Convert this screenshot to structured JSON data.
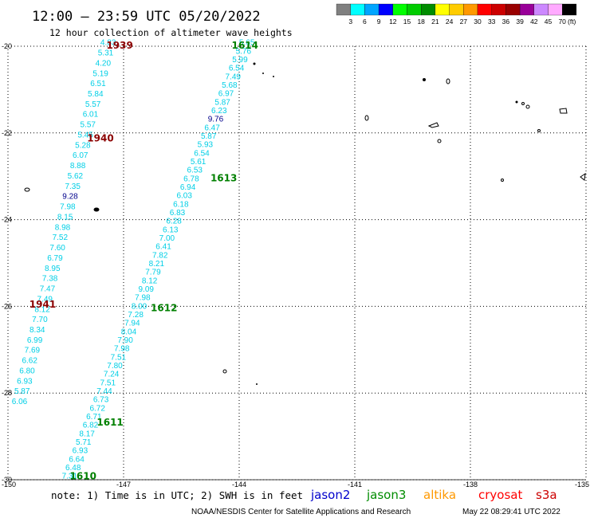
{
  "header": {
    "title": "12:00 – 23:59 UTC 05/20/2022",
    "subtitle": "12 hour collection of altimeter wave heights"
  },
  "legend": {
    "unit_label": "(ft)",
    "bins": [
      {
        "color": "#808080",
        "label": "3"
      },
      {
        "color": "#00ffff",
        "label": "6"
      },
      {
        "color": "#00a5ff",
        "label": "9"
      },
      {
        "color": "#0000ff",
        "label": "12"
      },
      {
        "color": "#00ff00",
        "label": "15"
      },
      {
        "color": "#00cc00",
        "label": "18"
      },
      {
        "color": "#008c00",
        "label": "21"
      },
      {
        "color": "#ffff00",
        "label": "24"
      },
      {
        "color": "#ffcc00",
        "label": "27"
      },
      {
        "color": "#ff9900",
        "label": "30"
      },
      {
        "color": "#ff0000",
        "label": "33"
      },
      {
        "color": "#cc0000",
        "label": "36"
      },
      {
        "color": "#990000",
        "label": "39"
      },
      {
        "color": "#990099",
        "label": "42"
      },
      {
        "color": "#cc88ff",
        "label": "45"
      },
      {
        "color": "#ffaaff",
        "label": "70"
      },
      {
        "color": "#000000",
        "label": ""
      }
    ]
  },
  "chart_data": {
    "type": "scatter",
    "title": "12:00 – 23:59 UTC 05/20/2022",
    "subtitle": "12 hour collection of altimeter wave heights",
    "x_axis": {
      "ticks": [
        "-150",
        "-147",
        "-144",
        "-141",
        "-138",
        "-135"
      ],
      "range": [
        -150,
        -135
      ]
    },
    "y_axis": {
      "ticks": [
        "-20",
        "-22",
        "-24",
        "-26",
        "-28",
        "-30"
      ],
      "range": [
        -30,
        -20
      ]
    },
    "grid": true,
    "tracks": [
      {
        "name": "A",
        "color": "#00cfe6",
        "start": [
          -147.4,
          -19.92
        ],
        "end": [
          -149.7,
          -28.2
        ],
        "values": [
          "4.83",
          "5.31",
          "4.20",
          "5.19",
          "6.51",
          "5.84",
          "5.57",
          "6.01",
          "5.57",
          "5.45",
          "5.28",
          "6.07",
          "8.88",
          "5.62",
          "7.35",
          "9.28",
          "7.98",
          "8.15",
          "8.98",
          "7.52",
          "7.60",
          "6.79",
          "8.95",
          "7.38",
          "7.47",
          "7.49",
          "8.12",
          "7.70",
          "8.34",
          "6.99",
          "7.69",
          "6.62",
          "6.80",
          "6.93",
          "5.87",
          "6.06"
        ],
        "highlight_index": 15
      },
      {
        "name": "B",
        "color": "#00cfe6",
        "start": [
          -143.8,
          -19.92
        ],
        "end": [
          -148.4,
          -29.92
        ],
        "values": [
          "5.65",
          "5.76",
          "5.99",
          "6.54",
          "7.49",
          "5.68",
          "6.97",
          "5.87",
          "6.23",
          "9.76",
          "6.47",
          "5.87",
          "5.93",
          "6.54",
          "5.61",
          "6.53",
          "6.78",
          "6.94",
          "6.03",
          "6.18",
          "6.83",
          "6.28",
          "6.13",
          "7.00",
          "6.41",
          "7.82",
          "8.21",
          "7.79",
          "8.12",
          "9.09",
          "7.98",
          "8.00",
          "7.28",
          "7.94",
          "8.04",
          "7.90",
          "7.98",
          "7.51",
          "7.80",
          "7.24",
          "7.51",
          "7.44",
          "6.73",
          "6.72",
          "6.71",
          "6.82",
          "8.17",
          "5.71",
          "6.93",
          "6.64",
          "6.48",
          "7.31"
        ],
        "highlight_index": 9
      }
    ],
    "highlight_color": "#00008b",
    "time_labels": [
      {
        "text": "1939",
        "color": "#8b0000",
        "lon": -147.1,
        "lat": -19.98
      },
      {
        "text": "1940",
        "color": "#8b0000",
        "lon": -147.6,
        "lat": -22.12
      },
      {
        "text": "1941",
        "color": "#8b0000",
        "lon": -149.1,
        "lat": -25.96
      },
      {
        "text": "1614",
        "color": "#008000",
        "lon": -143.85,
        "lat": -19.98
      },
      {
        "text": "1613",
        "color": "#008000",
        "lon": -144.4,
        "lat": -23.04
      },
      {
        "text": "1612",
        "color": "#008000",
        "lon": -145.95,
        "lat": -26.04
      },
      {
        "text": "1611",
        "color": "#008000",
        "lon": -147.35,
        "lat": -28.68
      },
      {
        "text": "1610",
        "color": "#008000",
        "lon": -148.05,
        "lat": -29.92
      }
    ]
  },
  "footer": {
    "note": "note: 1) Time is in UTC; 2) SWH is in feet",
    "satellites": [
      {
        "name": "jason2",
        "color": "#0000cc"
      },
      {
        "name": "jason3",
        "color": "#008c00"
      },
      {
        "name": "altika",
        "color": "#ff9900"
      },
      {
        "name": "cryosat",
        "color": "#ff0000"
      },
      {
        "name": "s3a",
        "color": "#cc0000"
      }
    ],
    "credit": "NOAA/NESDIS Center for Satellite Applications and Research",
    "generated": "May 22 08:29:41 UTC 2022"
  }
}
